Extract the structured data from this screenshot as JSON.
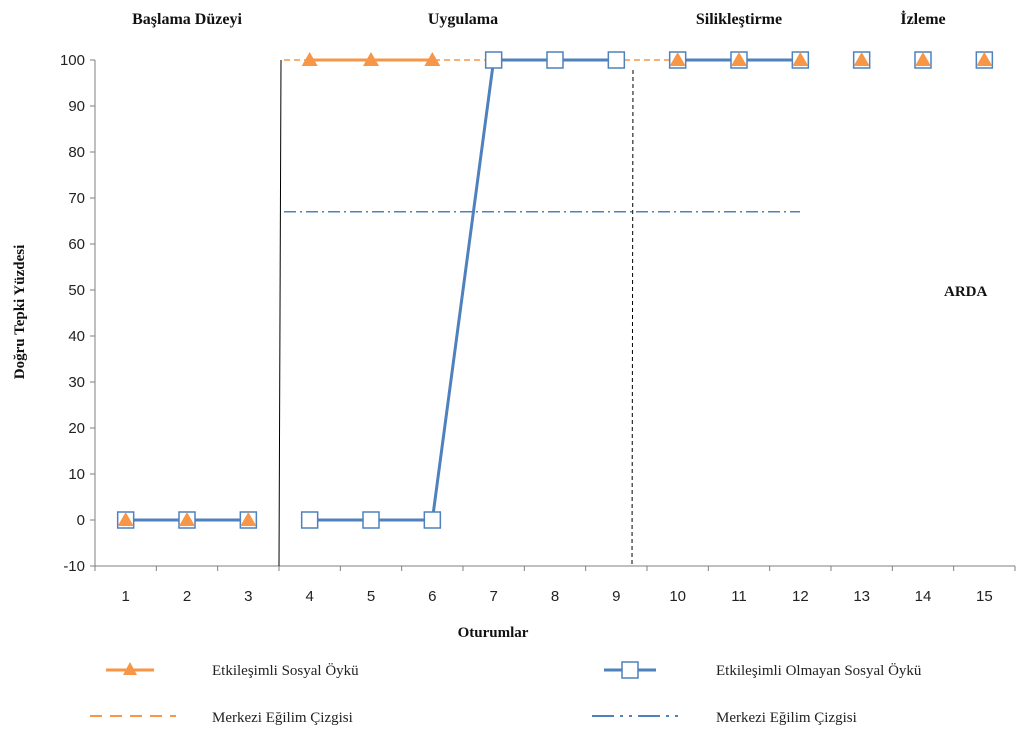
{
  "chart_data": {
    "type": "line",
    "participant": "ARDA",
    "xlabel": "Oturumlar",
    "ylabel": "Doğru Tepki Yüzdesi",
    "ylim": [
      -10,
      100
    ],
    "yticks": [
      -10,
      0,
      10,
      20,
      30,
      40,
      50,
      60,
      70,
      80,
      90,
      100
    ],
    "x": [
      1,
      2,
      3,
      4,
      5,
      6,
      7,
      8,
      9,
      10,
      11,
      12,
      13,
      14,
      15
    ],
    "phases": [
      {
        "label": "Başlama Düzeyi",
        "sessions": [
          1,
          3
        ]
      },
      {
        "label": "Uygulama",
        "sessions": [
          4,
          9
        ]
      },
      {
        "label": "Silikleştirme",
        "sessions": [
          10,
          12
        ]
      },
      {
        "label": "İzleme",
        "sessions": [
          13,
          15
        ]
      }
    ],
    "phase_boundaries": [
      3.5,
      9.5
    ],
    "series": [
      {
        "name": "Etkileşimli Sosyal Öykü",
        "color": "#f79646",
        "marker": "triangle",
        "points": [
          [
            1,
            0
          ],
          [
            2,
            0
          ],
          [
            3,
            0
          ],
          [
            4,
            100
          ],
          [
            5,
            100
          ],
          [
            6,
            100
          ],
          [
            10,
            100
          ],
          [
            11,
            100
          ],
          [
            12,
            100
          ],
          [
            13,
            100
          ],
          [
            14,
            100
          ],
          [
            15,
            100
          ]
        ],
        "segments": [
          [
            1,
            3
          ],
          [
            4,
            6
          ],
          [
            10,
            12
          ]
        ]
      },
      {
        "name": "Etkileşimli Olmayan Sosyal Öykü",
        "color": "#4f81bd",
        "marker": "square",
        "points": [
          [
            1,
            0
          ],
          [
            2,
            0
          ],
          [
            3,
            0
          ],
          [
            4,
            0
          ],
          [
            5,
            0
          ],
          [
            6,
            0
          ],
          [
            7,
            100
          ],
          [
            8,
            100
          ],
          [
            9,
            100
          ],
          [
            10,
            100
          ],
          [
            11,
            100
          ],
          [
            12,
            100
          ],
          [
            13,
            100
          ],
          [
            14,
            100
          ],
          [
            15,
            100
          ]
        ],
        "segments": [
          [
            1,
            3
          ],
          [
            4,
            9
          ],
          [
            10,
            12
          ]
        ]
      }
    ],
    "trend_lines": [
      {
        "name": "Merkezi Eğilim Çizgisi",
        "color": "#f79646",
        "style": "dashed",
        "y": 100,
        "x_range": [
          4,
          12
        ]
      },
      {
        "name": "Merkezi Eğilim Çizgisi",
        "color": "#4f81bd",
        "style": "dash-dot",
        "y": 67,
        "x_range": [
          4,
          12
        ]
      }
    ]
  }
}
